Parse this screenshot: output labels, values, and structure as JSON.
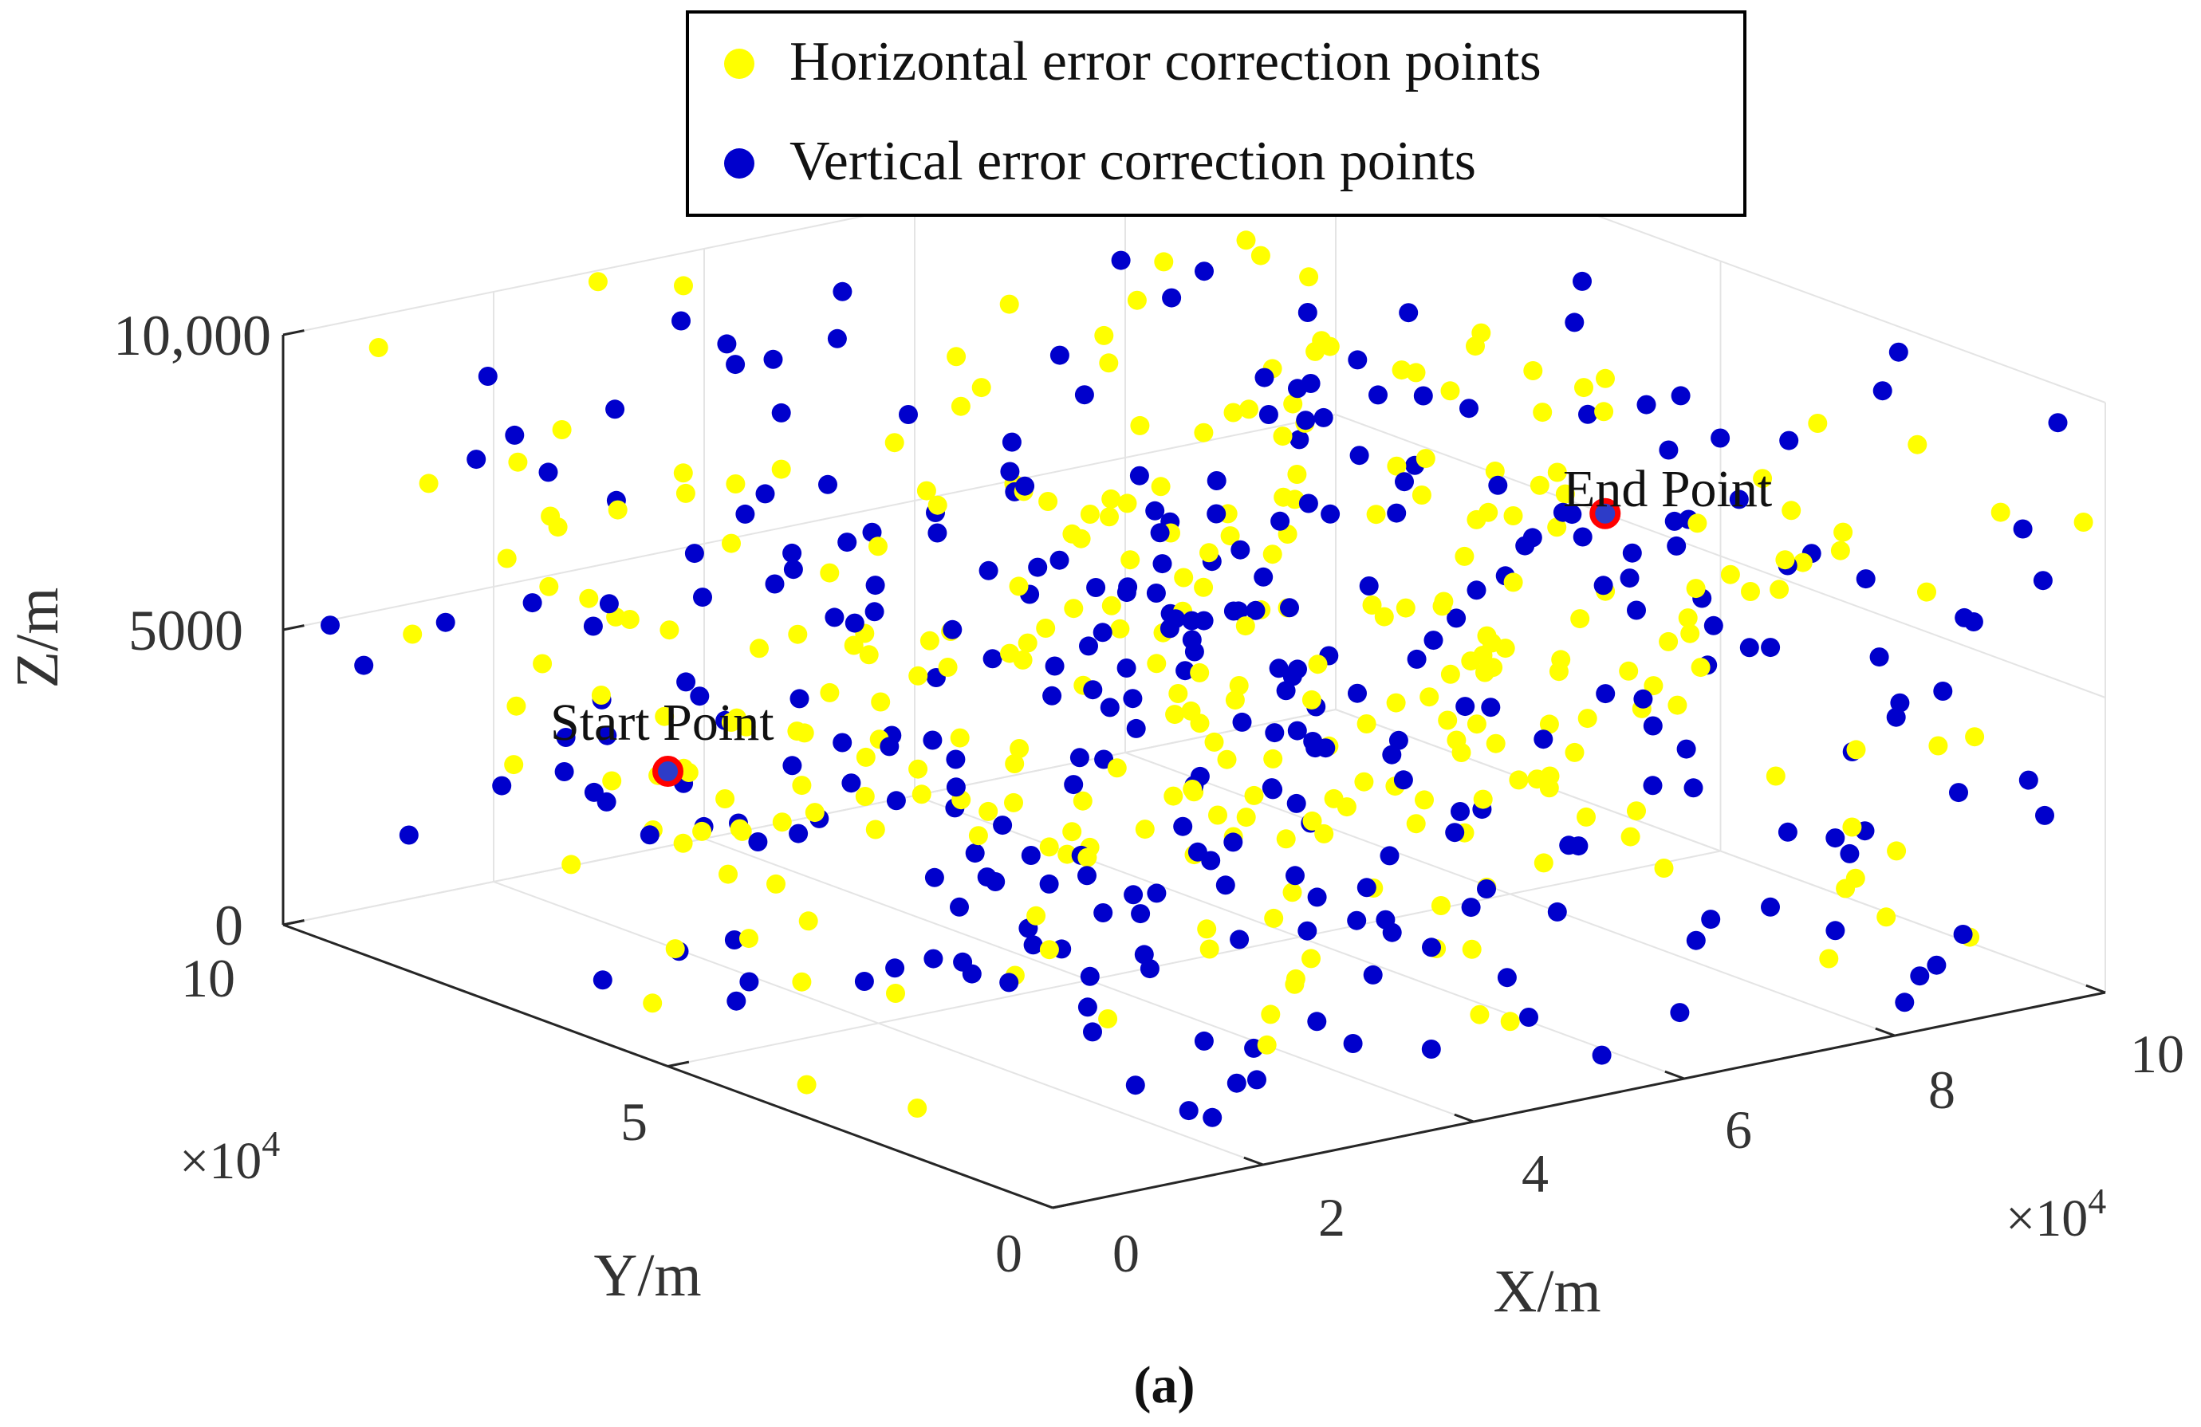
{
  "chart_data": {
    "type": "scatter",
    "dimensions": 3,
    "legend": {
      "placement": "top-center",
      "entries": [
        {
          "label": "Horizontal error correction points",
          "color": "#ffff00",
          "series": 0
        },
        {
          "label": "Vertical error correction points",
          "color": "#0000cc",
          "series": 1
        }
      ]
    },
    "axes": {
      "x": {
        "label": "X/m",
        "ticks": [
          "0",
          "2",
          "4",
          "6",
          "8",
          "10"
        ],
        "tick_values": [
          0,
          2,
          4,
          6,
          8,
          10
        ],
        "multiplier": "×10",
        "multiplier_exp": "4",
        "range": [
          0,
          10
        ]
      },
      "y": {
        "label": "Y/m",
        "ticks": [
          "0",
          "5",
          "10"
        ],
        "tick_values": [
          0,
          5,
          10
        ],
        "multiplier": "×10",
        "multiplier_exp": "4",
        "range": [
          0,
          10
        ]
      },
      "z": {
        "label": "Z/m",
        "ticks": [
          "0",
          "5000",
          "10,000"
        ],
        "tick_values": [
          0,
          5000,
          10000
        ],
        "range": [
          0,
          10000
        ]
      }
    },
    "grid": true,
    "series": [
      {
        "name": "Horizontal error correction points",
        "color": "#ffff00",
        "count": 305
      },
      {
        "name": "Vertical error correction points",
        "color": "#0000cc",
        "count": 305
      }
    ],
    "annotations": [
      {
        "text": "Start Point",
        "x": 0,
        "y": 5,
        "z": 5000,
        "marker_color": "#ff0000"
      },
      {
        "text": "End Point",
        "x": 10,
        "y": 6.5,
        "z": 5000,
        "marker_color": "#ff0000"
      }
    ]
  },
  "caption": "(a)"
}
